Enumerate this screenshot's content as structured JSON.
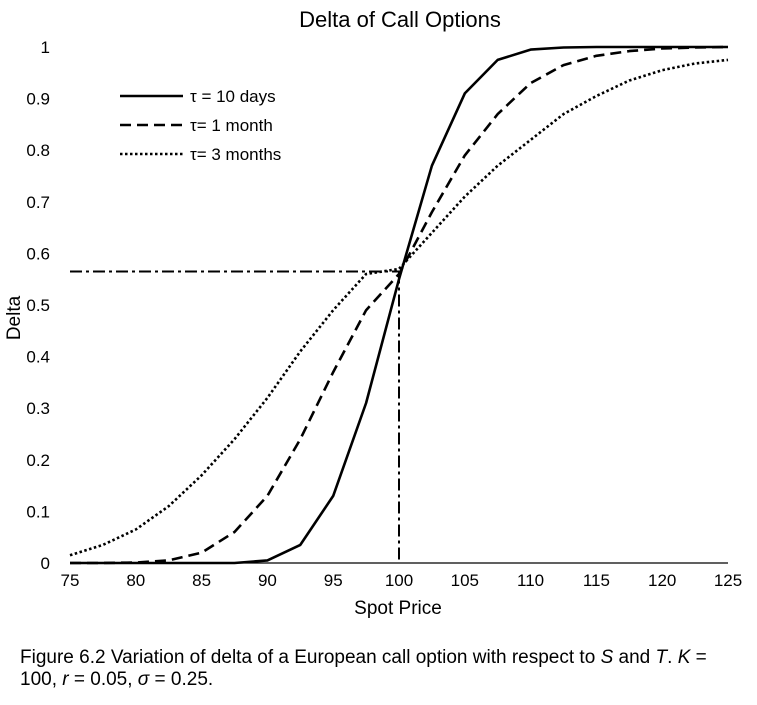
{
  "chart_data": {
    "type": "line",
    "title": "Delta of Call Options",
    "xlabel": "Spot Price",
    "ylabel": "Delta",
    "xlim": [
      75,
      125
    ],
    "ylim": [
      0,
      1
    ],
    "xticks": [
      75,
      80,
      85,
      90,
      95,
      100,
      105,
      110,
      115,
      120,
      125
    ],
    "yticks": [
      0,
      0.1,
      0.2,
      0.3,
      0.4,
      0.5,
      0.6,
      0.7,
      0.8,
      0.9,
      1
    ],
    "ytick_labels": [
      "0",
      "0.1",
      "0.2",
      "0.3",
      "0.4",
      "0.5",
      "0.6",
      "0.7",
      "0.8",
      "0.9",
      "1"
    ],
    "grid": false,
    "legend_position": "top-left",
    "x": [
      75,
      77.5,
      80,
      82.5,
      85,
      87.5,
      90,
      92.5,
      95,
      97.5,
      100,
      102.5,
      105,
      107.5,
      110,
      112.5,
      115,
      117.5,
      120,
      122.5,
      125
    ],
    "series": [
      {
        "name": "τ = 10 days",
        "style": "solid",
        "values": [
          0.0,
          0.0,
          0.0,
          0.0,
          0.0,
          0.0,
          0.005,
          0.035,
          0.13,
          0.31,
          0.55,
          0.77,
          0.91,
          0.975,
          0.995,
          0.999,
          1.0,
          1.0,
          1.0,
          1.0,
          1.0
        ]
      },
      {
        "name": "τ= 1 month",
        "style": "dashed",
        "values": [
          0.0,
          0.0,
          0.001,
          0.005,
          0.02,
          0.06,
          0.13,
          0.24,
          0.37,
          0.49,
          0.56,
          0.68,
          0.79,
          0.87,
          0.93,
          0.965,
          0.983,
          0.992,
          0.997,
          0.999,
          1.0
        ]
      },
      {
        "name": "τ= 3 months",
        "style": "dotted",
        "values": [
          0.015,
          0.035,
          0.065,
          0.11,
          0.17,
          0.24,
          0.32,
          0.41,
          0.49,
          0.56,
          0.57,
          0.64,
          0.71,
          0.77,
          0.82,
          0.87,
          0.905,
          0.935,
          0.955,
          0.968,
          0.975
        ]
      }
    ],
    "reference_lines": {
      "x": 100,
      "y": 0.565,
      "style": "dashdot"
    },
    "caption": {
      "prefix": "Figure 6.2 Variation of delta of a European call option with respect to ",
      "var_s": "S",
      "mid": " and ",
      "var_t": "T",
      "rest": ". ",
      "var_k": "K",
      "k_val": " = 100, ",
      "var_r": "r",
      "r_val": " = 0.05, ",
      "var_sigma": "σ",
      "sigma_val": " = 0.25."
    }
  }
}
